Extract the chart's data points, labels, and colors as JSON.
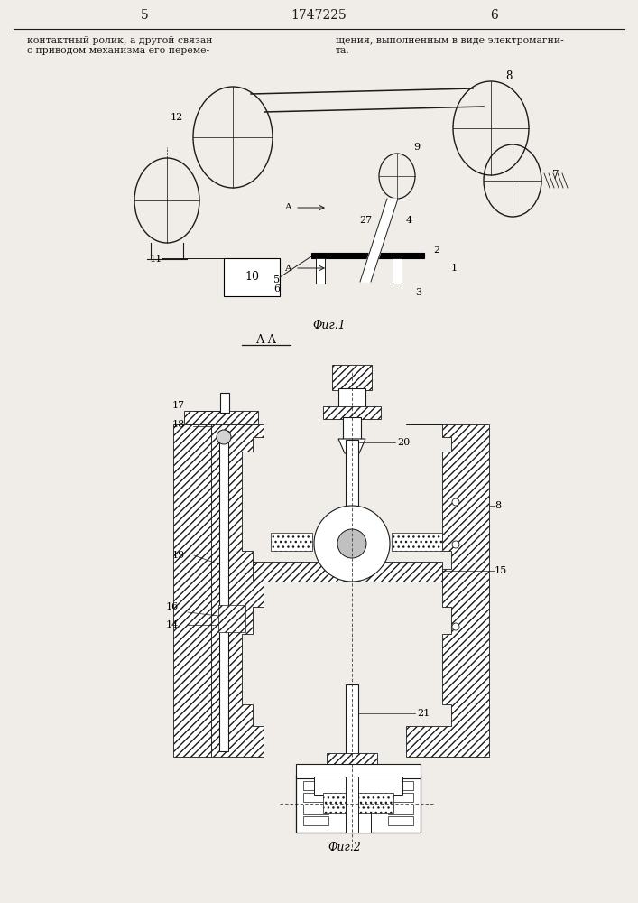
{
  "page_width": 7.07,
  "page_height": 10.0,
  "bg_color": "#f0ede8",
  "page_num_left": "5",
  "page_num_center": "1747225",
  "page_num_right": "6",
  "text_left_line1": "контактный ролик, а другой связан",
  "text_left_line2": "с приводом механизма его переме-",
  "text_right_line1": "щения, выполненным в виде электромагни-",
  "text_right_line2": "та.",
  "fig1_caption": "Фиг.1",
  "fig2_caption": "Фиг.2",
  "aa_caption": "А-А",
  "line_color": "#1a1a1a"
}
